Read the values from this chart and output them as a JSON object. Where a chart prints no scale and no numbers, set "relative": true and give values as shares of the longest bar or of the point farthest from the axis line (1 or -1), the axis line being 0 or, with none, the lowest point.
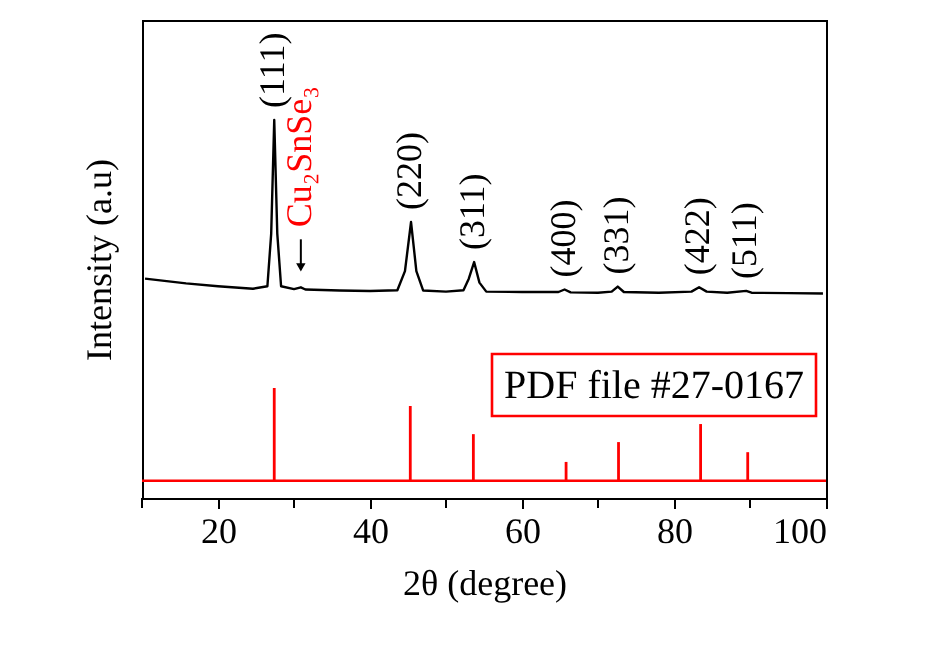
{
  "chart_data": {
    "type": "line",
    "relative": true,
    "xlabel": "2θ (degree)",
    "ylabel": "Intensity (a.u)",
    "xlim": [
      10,
      100
    ],
    "xticks": [
      {
        "value": 10,
        "label": null
      },
      20,
      {
        "value": 30,
        "label": null
      },
      40,
      {
        "value": 50,
        "label": null
      },
      60,
      {
        "value": 70,
        "label": null
      },
      80,
      {
        "value": 90,
        "label": null
      },
      100
    ],
    "grid": false,
    "marker": "none",
    "line_style": "solid",
    "series": [
      {
        "color": "#000000",
        "x": [
          10.4,
          15.8,
          20,
          24.6,
          26.5,
          27.0,
          27.4,
          27.8,
          28.3,
          30.0,
          30.9,
          31.5,
          36,
          40,
          43.6,
          44.6,
          45.4,
          46.1,
          47,
          50,
          52.3,
          53.0,
          53.7,
          54.4,
          55.3,
          60,
          64.8,
          65.6,
          66.4,
          70,
          71.8,
          72.6,
          73.4,
          78,
          82.3,
          83.3,
          84.3,
          87,
          89.5,
          90.2,
          95,
          99.6
        ],
        "values": [
          0.56,
          0.547,
          0.539,
          0.532,
          0.539,
          0.685,
          1.0,
          0.685,
          0.539,
          0.531,
          0.536,
          0.53,
          0.527,
          0.526,
          0.528,
          0.581,
          0.717,
          0.581,
          0.527,
          0.524,
          0.528,
          0.56,
          0.606,
          0.549,
          0.524,
          0.523,
          0.523,
          0.53,
          0.522,
          0.521,
          0.524,
          0.538,
          0.523,
          0.521,
          0.524,
          0.536,
          0.524,
          0.521,
          0.526,
          0.521,
          0.52,
          0.519
        ]
      },
      {
        "type": "bar",
        "color": "#ff0000",
        "x": [
          27.4,
          45.3,
          53.6,
          65.8,
          72.7,
          83.5,
          89.7
        ],
        "values": [
          0.257,
          0.207,
          0.129,
          0.052,
          0.107,
          0.157,
          0.079
        ]
      }
    ],
    "ref_lines": [
      {
        "axis": "y",
        "value": 0,
        "color": "#ff0000"
      }
    ],
    "annotations": [
      {
        "text": "(111)",
        "x": 27.4,
        "y": 1.0
      },
      {
        "text": "Cu₂SnSe₃",
        "x": 30.9,
        "y": 0.536
      },
      {
        "text": "(220)",
        "x": 45.4,
        "y": 0.717
      },
      {
        "text": "(311)",
        "x": 53.7,
        "y": 0.606
      },
      {
        "text": "(400)",
        "x": 65.6,
        "y": 0.53
      },
      {
        "text": "(331)",
        "x": 72.6,
        "y": 0.538
      },
      {
        "text": "(422)",
        "x": 83.3,
        "y": 0.536
      },
      {
        "text": "(511)",
        "x": 89.5,
        "y": 0.526
      },
      "PDF file #27-0167"
    ]
  }
}
